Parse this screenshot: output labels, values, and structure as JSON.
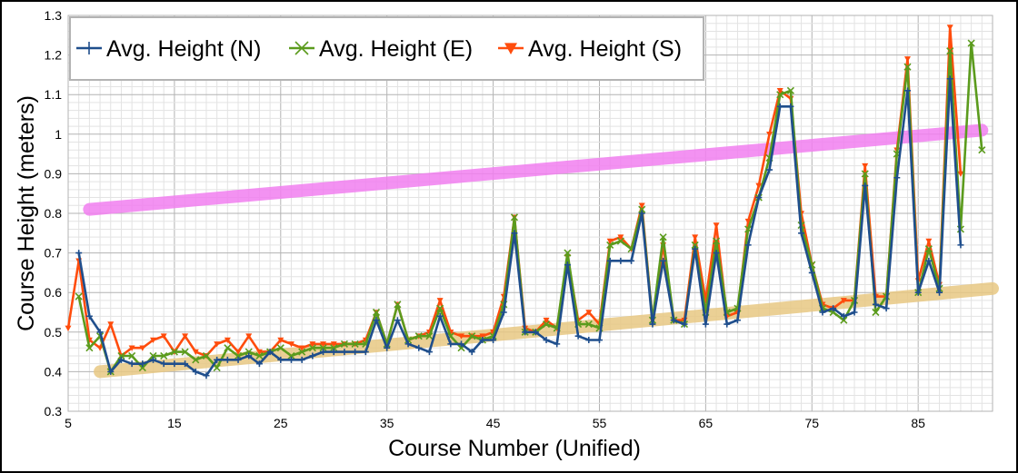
{
  "chart_data": {
    "type": "line",
    "xlabel": "Course Number (Unified)",
    "ylabel": "Course Height (meters)",
    "xlim": [
      5,
      92
    ],
    "ylim": [
      0.3,
      1.3
    ],
    "x_ticks": [
      "5",
      "15",
      "25",
      "35",
      "45",
      "55",
      "65",
      "75",
      "85"
    ],
    "y_ticks": [
      "0.3",
      "0.4",
      "0.5",
      "0.6",
      "0.7",
      "0.8",
      "0.9",
      "1",
      "1.1",
      "1.2",
      "1.3"
    ],
    "grid": true,
    "legend_position": "top-left",
    "series": [
      {
        "name": "Avg. Height (N)",
        "color": "#1f4e8c",
        "marker": "plus",
        "points": [
          [
            6,
            0.7
          ],
          [
            7,
            0.54
          ],
          [
            8,
            0.5
          ],
          [
            9,
            0.4
          ],
          [
            10,
            0.43
          ],
          [
            11,
            0.42
          ],
          [
            12,
            0.42
          ],
          [
            13,
            0.43
          ],
          [
            14,
            0.42
          ],
          [
            15,
            0.42
          ],
          [
            16,
            0.42
          ],
          [
            17,
            0.4
          ],
          [
            18,
            0.39
          ],
          [
            19,
            0.43
          ],
          [
            20,
            0.43
          ],
          [
            21,
            0.43
          ],
          [
            22,
            0.44
          ],
          [
            23,
            0.42
          ],
          [
            24,
            0.45
          ],
          [
            25,
            0.43
          ],
          [
            26,
            0.43
          ],
          [
            27,
            0.43
          ],
          [
            28,
            0.44
          ],
          [
            29,
            0.45
          ],
          [
            30,
            0.45
          ],
          [
            31,
            0.45
          ],
          [
            32,
            0.45
          ],
          [
            33,
            0.45
          ],
          [
            34,
            0.53
          ],
          [
            35,
            0.46
          ],
          [
            36,
            0.53
          ],
          [
            37,
            0.47
          ],
          [
            38,
            0.46
          ],
          [
            39,
            0.45
          ],
          [
            40,
            0.54
          ],
          [
            41,
            0.47
          ],
          [
            42,
            0.47
          ],
          [
            43,
            0.45
          ],
          [
            44,
            0.48
          ],
          [
            45,
            0.48
          ],
          [
            46,
            0.55
          ],
          [
            47,
            0.75
          ],
          [
            48,
            0.5
          ],
          [
            49,
            0.5
          ],
          [
            50,
            0.48
          ],
          [
            51,
            0.47
          ],
          [
            52,
            0.67
          ],
          [
            53,
            0.49
          ],
          [
            54,
            0.48
          ],
          [
            55,
            0.48
          ],
          [
            56,
            0.68
          ],
          [
            57,
            0.68
          ],
          [
            58,
            0.68
          ],
          [
            59,
            0.8
          ],
          [
            60,
            0.52
          ],
          [
            61,
            0.68
          ],
          [
            62,
            0.53
          ],
          [
            63,
            0.52
          ],
          [
            64,
            0.71
          ],
          [
            65,
            0.52
          ],
          [
            66,
            0.7
          ],
          [
            67,
            0.52
          ],
          [
            68,
            0.53
          ],
          [
            69,
            0.72
          ],
          [
            70,
            0.84
          ],
          [
            71,
            0.91
          ],
          [
            72,
            1.07
          ],
          [
            73,
            1.07
          ],
          [
            74,
            0.75
          ],
          [
            75,
            0.65
          ],
          [
            76,
            0.55
          ],
          [
            77,
            0.56
          ],
          [
            78,
            0.54
          ],
          [
            79,
            0.55
          ],
          [
            80,
            0.87
          ],
          [
            81,
            0.57
          ],
          [
            82,
            0.56
          ],
          [
            83,
            0.89
          ],
          [
            84,
            1.11
          ],
          [
            85,
            0.6
          ],
          [
            86,
            0.68
          ],
          [
            87,
            0.6
          ],
          [
            88,
            1.14
          ],
          [
            89,
            0.72
          ]
        ]
      },
      {
        "name": "Avg. Height (E)",
        "color": "#5b9b1d",
        "marker": "x",
        "points": [
          [
            6,
            0.59
          ],
          [
            7,
            0.46
          ],
          [
            8,
            0.49
          ],
          [
            9,
            0.4
          ],
          [
            10,
            0.44
          ],
          [
            11,
            0.44
          ],
          [
            12,
            0.41
          ],
          [
            13,
            0.44
          ],
          [
            14,
            0.44
          ],
          [
            15,
            0.45
          ],
          [
            16,
            0.45
          ],
          [
            17,
            0.43
          ],
          [
            18,
            0.44
          ],
          [
            19,
            0.41
          ],
          [
            20,
            0.46
          ],
          [
            21,
            0.44
          ],
          [
            22,
            0.45
          ],
          [
            23,
            0.44
          ],
          [
            24,
            0.45
          ],
          [
            25,
            0.46
          ],
          [
            26,
            0.44
          ],
          [
            27,
            0.45
          ],
          [
            28,
            0.46
          ],
          [
            29,
            0.46
          ],
          [
            30,
            0.46
          ],
          [
            31,
            0.47
          ],
          [
            32,
            0.47
          ],
          [
            33,
            0.47
          ],
          [
            34,
            0.55
          ],
          [
            35,
            0.47
          ],
          [
            36,
            0.57
          ],
          [
            37,
            0.48
          ],
          [
            38,
            0.49
          ],
          [
            39,
            0.49
          ],
          [
            40,
            0.56
          ],
          [
            41,
            0.49
          ],
          [
            42,
            0.46
          ],
          [
            43,
            0.49
          ],
          [
            44,
            0.48
          ],
          [
            45,
            0.49
          ],
          [
            46,
            0.57
          ],
          [
            47,
            0.79
          ],
          [
            48,
            0.5
          ],
          [
            49,
            0.5
          ],
          [
            50,
            0.52
          ],
          [
            51,
            0.51
          ],
          [
            52,
            0.7
          ],
          [
            53,
            0.52
          ],
          [
            54,
            0.52
          ],
          [
            55,
            0.51
          ],
          [
            56,
            0.72
          ],
          [
            57,
            0.73
          ],
          [
            58,
            0.71
          ],
          [
            59,
            0.81
          ],
          [
            60,
            0.53
          ],
          [
            61,
            0.74
          ],
          [
            62,
            0.53
          ],
          [
            63,
            0.52
          ],
          [
            64,
            0.72
          ],
          [
            65,
            0.55
          ],
          [
            66,
            0.73
          ],
          [
            67,
            0.55
          ],
          [
            68,
            0.56
          ],
          [
            69,
            0.76
          ],
          [
            70,
            0.84
          ],
          [
            71,
            0.94
          ],
          [
            72,
            1.1
          ],
          [
            73,
            1.11
          ],
          [
            74,
            0.77
          ],
          [
            75,
            0.67
          ],
          [
            76,
            0.56
          ],
          [
            77,
            0.55
          ],
          [
            78,
            0.53
          ],
          [
            79,
            0.58
          ],
          [
            80,
            0.9
          ],
          [
            81,
            0.55
          ],
          [
            82,
            0.59
          ],
          [
            83,
            0.95
          ],
          [
            84,
            1.17
          ],
          [
            85,
            0.6
          ],
          [
            86,
            0.71
          ],
          [
            87,
            0.61
          ],
          [
            88,
            1.21
          ],
          [
            89,
            0.76
          ],
          [
            90,
            1.23
          ],
          [
            91,
            0.96
          ]
        ]
      },
      {
        "name": "Avg. Height (S)",
        "color": "#ff4c0c",
        "marker": "triangle-down",
        "points": [
          [
            5,
            0.51
          ],
          [
            6,
            0.68
          ],
          [
            7,
            0.48
          ],
          [
            8,
            0.46
          ],
          [
            9,
            0.52
          ],
          [
            10,
            0.44
          ],
          [
            11,
            0.46
          ],
          [
            12,
            0.46
          ],
          [
            13,
            0.48
          ],
          [
            14,
            0.49
          ],
          [
            15,
            0.45
          ],
          [
            16,
            0.49
          ],
          [
            17,
            0.45
          ],
          [
            18,
            0.44
          ],
          [
            19,
            0.47
          ],
          [
            20,
            0.48
          ],
          [
            21,
            0.45
          ],
          [
            22,
            0.49
          ],
          [
            23,
            0.45
          ],
          [
            24,
            0.45
          ],
          [
            25,
            0.48
          ],
          [
            26,
            0.47
          ],
          [
            27,
            0.46
          ],
          [
            28,
            0.47
          ],
          [
            29,
            0.47
          ],
          [
            30,
            0.47
          ],
          [
            31,
            0.47
          ],
          [
            32,
            0.47
          ],
          [
            33,
            0.48
          ],
          [
            34,
            0.55
          ],
          [
            35,
            0.47
          ],
          [
            36,
            0.57
          ],
          [
            37,
            0.48
          ],
          [
            38,
            0.49
          ],
          [
            39,
            0.5
          ],
          [
            40,
            0.58
          ],
          [
            41,
            0.5
          ],
          [
            42,
            0.49
          ],
          [
            43,
            0.49
          ],
          [
            44,
            0.49
          ],
          [
            45,
            0.5
          ],
          [
            46,
            0.59
          ],
          [
            47,
            0.79
          ],
          [
            48,
            0.51
          ],
          [
            49,
            0.5
          ],
          [
            50,
            0.53
          ],
          [
            51,
            0.51
          ],
          [
            52,
            0.69
          ],
          [
            53,
            0.53
          ],
          [
            54,
            0.55
          ],
          [
            55,
            0.52
          ],
          [
            56,
            0.73
          ],
          [
            57,
            0.74
          ],
          [
            58,
            0.71
          ],
          [
            59,
            0.82
          ],
          [
            60,
            0.53
          ],
          [
            61,
            0.72
          ],
          [
            62,
            0.53
          ],
          [
            63,
            0.53
          ],
          [
            64,
            0.74
          ],
          [
            65,
            0.58
          ],
          [
            66,
            0.77
          ],
          [
            67,
            0.54
          ],
          [
            68,
            0.55
          ],
          [
            69,
            0.78
          ],
          [
            70,
            0.87
          ],
          [
            71,
            1.0
          ],
          [
            72,
            1.11
          ],
          [
            73,
            1.09
          ],
          [
            74,
            0.8
          ],
          [
            75,
            0.67
          ],
          [
            76,
            0.57
          ],
          [
            77,
            0.56
          ],
          [
            78,
            0.58
          ],
          [
            79,
            0.58
          ],
          [
            80,
            0.92
          ],
          [
            81,
            0.59
          ],
          [
            82,
            0.59
          ],
          [
            83,
            0.96
          ],
          [
            84,
            1.19
          ],
          [
            85,
            0.63
          ],
          [
            86,
            0.73
          ],
          [
            87,
            0.62
          ],
          [
            88,
            1.27
          ],
          [
            89,
            0.9
          ]
        ]
      }
    ],
    "trend_lines": [
      {
        "color": "#f27ff0",
        "from": [
          7,
          0.81
        ],
        "to": [
          91,
          1.01
        ]
      },
      {
        "color": "#e8c883",
        "from": [
          8,
          0.4
        ],
        "to": [
          92,
          0.61
        ]
      }
    ]
  }
}
